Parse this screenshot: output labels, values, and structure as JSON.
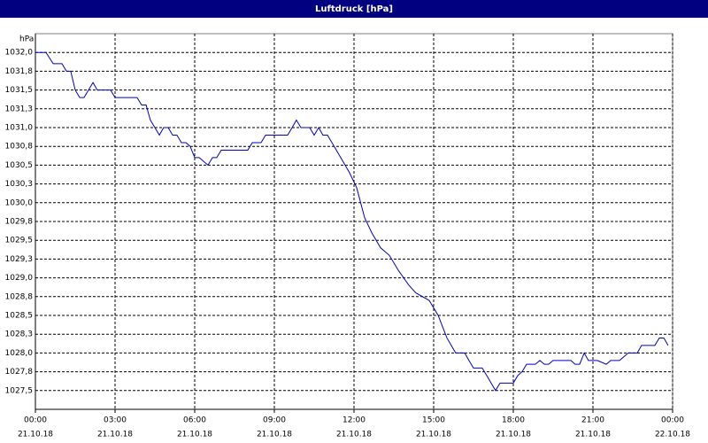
{
  "chart_data": {
    "type": "line",
    "title": "Luftdruck [hPa]",
    "y_unit": "hPa",
    "xlim": [
      0,
      24
    ],
    "ylim": [
      1027.25,
      1032.25
    ],
    "xticks": [
      {
        "value": 0,
        "label": "00:00",
        "sublabel": "21.10.18"
      },
      {
        "value": 3,
        "label": "03:00",
        "sublabel": "21.10.18"
      },
      {
        "value": 6,
        "label": "06:00",
        "sublabel": "21.10.18"
      },
      {
        "value": 9,
        "label": "09:00",
        "sublabel": "21.10.18"
      },
      {
        "value": 12,
        "label": "12:00",
        "sublabel": "21.10.18"
      },
      {
        "value": 15,
        "label": "15:00",
        "sublabel": "21.10.18"
      },
      {
        "value": 18,
        "label": "18:00",
        "sublabel": "21.10.18"
      },
      {
        "value": 21,
        "label": "21:00",
        "sublabel": "21.10.18"
      },
      {
        "value": 24,
        "label": "00:00",
        "sublabel": "22.10.18"
      }
    ],
    "yticks": [
      {
        "value": 1032.0,
        "label": "1032,0"
      },
      {
        "value": 1031.75,
        "label": "1031,8"
      },
      {
        "value": 1031.5,
        "label": "1031,5"
      },
      {
        "value": 1031.25,
        "label": "1031,3"
      },
      {
        "value": 1031.0,
        "label": "1031,0"
      },
      {
        "value": 1030.75,
        "label": "1030,8"
      },
      {
        "value": 1030.5,
        "label": "1030,5"
      },
      {
        "value": 1030.25,
        "label": "1030,3"
      },
      {
        "value": 1030.0,
        "label": "1030,0"
      },
      {
        "value": 1029.75,
        "label": "1029,8"
      },
      {
        "value": 1029.5,
        "label": "1029,5"
      },
      {
        "value": 1029.25,
        "label": "1029,3"
      },
      {
        "value": 1029.0,
        "label": "1029,0"
      },
      {
        "value": 1028.75,
        "label": "1028,8"
      },
      {
        "value": 1028.5,
        "label": "1028,5"
      },
      {
        "value": 1028.25,
        "label": "1028,3"
      },
      {
        "value": 1028.0,
        "label": "1028,0"
      },
      {
        "value": 1027.75,
        "label": "1027,8"
      },
      {
        "value": 1027.5,
        "label": "1027,5"
      }
    ],
    "grid": true,
    "x": [
      0.0,
      0.4,
      0.67,
      1.0,
      1.17,
      1.33,
      1.5,
      1.67,
      1.83,
      2.0,
      2.17,
      2.33,
      2.83,
      3.0,
      3.83,
      4.0,
      4.17,
      4.33,
      4.5,
      4.67,
      4.83,
      5.0,
      5.17,
      5.33,
      5.5,
      5.67,
      5.83,
      6.0,
      6.17,
      6.5,
      6.67,
      6.83,
      7.0,
      8.0,
      8.17,
      8.5,
      8.67,
      9.5,
      9.67,
      9.83,
      10.0,
      10.33,
      10.5,
      10.67,
      10.83,
      11.0,
      11.17,
      11.5,
      11.83,
      12.1,
      12.4,
      12.67,
      13.0,
      13.33,
      13.67,
      14.07,
      14.33,
      14.83,
      15.17,
      15.5,
      15.83,
      16.17,
      16.33,
      16.5,
      16.83,
      17.0,
      17.33,
      17.5,
      18.0,
      18.17,
      18.33,
      18.5,
      18.83,
      19.0,
      19.17,
      19.33,
      19.5,
      20.17,
      20.33,
      20.5,
      20.67,
      20.83,
      21.17,
      21.5,
      21.67,
      22.0,
      22.33,
      22.67,
      22.83,
      23.33,
      23.5,
      23.67,
      23.83
    ],
    "series": [
      {
        "color": "#0000c0",
        "values": [
          1032.0,
          1032.0,
          1031.85,
          1031.85,
          1031.75,
          1031.75,
          1031.5,
          1031.4,
          1031.4,
          1031.5,
          1031.6,
          1031.5,
          1031.5,
          1031.4,
          1031.4,
          1031.3,
          1031.3,
          1031.1,
          1031.0,
          1030.9,
          1031.0,
          1031.0,
          1030.9,
          1030.9,
          1030.8,
          1030.8,
          1030.75,
          1030.6,
          1030.6,
          1030.5,
          1030.6,
          1030.6,
          1030.7,
          1030.7,
          1030.8,
          1030.8,
          1030.9,
          1030.9,
          1031.0,
          1031.1,
          1031.0,
          1031.0,
          1030.9,
          1031.0,
          1030.9,
          1030.9,
          1030.8,
          1030.6,
          1030.4,
          1030.2,
          1029.8,
          1029.6,
          1029.4,
          1029.3,
          1029.1,
          1028.9,
          1028.8,
          1028.7,
          1028.5,
          1028.2,
          1028.0,
          1028.0,
          1027.9,
          1027.8,
          1027.8,
          1027.7,
          1027.5,
          1027.6,
          1027.6,
          1027.7,
          1027.75,
          1027.85,
          1027.85,
          1027.9,
          1027.85,
          1027.85,
          1027.9,
          1027.9,
          1027.85,
          1027.85,
          1028.0,
          1027.9,
          1027.9,
          1027.85,
          1027.9,
          1027.9,
          1028.0,
          1028.0,
          1028.1,
          1028.1,
          1028.2,
          1028.2,
          1028.1
        ]
      }
    ]
  }
}
